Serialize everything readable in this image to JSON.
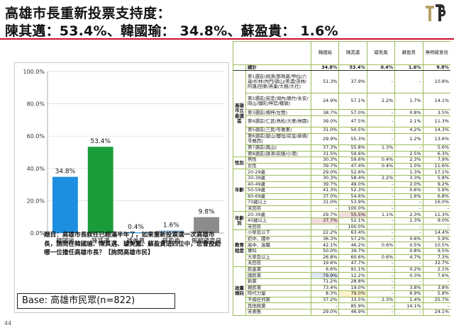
{
  "title": {
    "line1": "高雄市長重新投票支持度：",
    "line2": "陳其邁：53.4%、韓國瑜： 34.8%、蘇盈貴： 1.6%"
  },
  "colors": {
    "accent_red": "#c8102e",
    "bar_blue": "#1e8fe0",
    "bar_green": "#1a9c3a",
    "bar_gray": "#8c8c8c",
    "bar_light_blue": "#9dc3e6",
    "table_border": "#9bbb59"
  },
  "chart_data": {
    "type": "bar",
    "categories": [
      "韓國瑜",
      "陳其邁",
      "璩美鳳",
      "蘇盈貴",
      "無明確意見"
    ],
    "values": [
      34.8,
      53.4,
      0.4,
      1.6,
      9.8
    ],
    "value_labels": [
      "34.8%",
      "53.4%",
      "0.4%",
      "1.6%",
      "9.8%"
    ],
    "bar_colors": [
      "#1e8fe0",
      "#1a9c3a",
      "#1e8fe0",
      "#9dc3e6",
      "#8c8c8c"
    ],
    "ylim": [
      0,
      100
    ],
    "yticks": [
      "0.0%",
      "20.0%",
      "40.0%",
      "60.0%",
      "80.0%",
      "100.0%"
    ],
    "grid": true,
    "title": "",
    "xlabel": "",
    "ylabel": ""
  },
  "question": "題目：高雄市長就任已經滿半年了，如果重新投票選一次高雄市長，請問在韓國瑜、陳其邁、璩美鳳、蘇盈貴這四位中，您會投給哪一位擔任高雄市長？【詢問高雄市民】",
  "base": "Base: 高雄市民眾(n=822)",
  "page_number": "44",
  "table": {
    "headers": [
      "韓國瑜",
      "陳其邁",
      "璩美鳳",
      "蘇盈貴",
      "無明確意見"
    ],
    "total": {
      "label": "總計",
      "values": [
        "34.8%",
        "53.4%",
        "0.4%",
        "1.6%",
        "9.8%"
      ]
    },
    "groups": [
      {
        "name": "高雄市立委選區",
        "rows": [
          {
            "label": "第1選區(桃源/那瑪夏/甲仙/六龜/杉林/內門/旗山/美濃/茂林/阿蓮/田寮/燕巢/大樹/大社)",
            "values": [
              "51.3%",
              "37.9%",
              "-",
              "-",
              "10.8%"
            ],
            "tall": 4
          },
          {
            "label": "第2選區(茄萣/湖內/路竹/永安/岡山/彌陀/梓官/橋頭)",
            "values": [
              "24.9%",
              "57.1%",
              "2.2%",
              "1.7%",
              "14.1%"
            ],
            "tall": 3
          },
          {
            "label": "第3選區(楠梓/左營)",
            "values": [
              "38.7%",
              "57.0%",
              "-",
              "0.8%",
              "3.5%"
            ],
            "tall": 1
          },
          {
            "label": "第4選區(仁武/鳥松/大寮/林園)",
            "values": [
              "39.0%",
              "47.5%",
              "-",
              "2.1%",
              "11.3%"
            ],
            "tall": 2
          },
          {
            "label": "第5選區(三民/苓雅東)",
            "values": [
              "31.0%",
              "50.5%",
              "-",
              "4.2%",
              "14.3%"
            ],
            "tall": 1
          },
          {
            "label": "第6選區(鼓山/鹽埕/前金/新興/苓雅西)",
            "values": [
              "29.9%",
              "55.3%",
              "-",
              "1.2%",
              "13.6%"
            ],
            "tall": 2
          },
          {
            "label": "第7選區(鳳山)",
            "values": [
              "37.3%",
              "55.8%",
              "1.3%",
              "-",
              "5.6%"
            ],
            "tall": 1
          },
          {
            "label": "第8選區(旗津/前鎮/小港)",
            "values": [
              "31.5%",
              "59.6%",
              "-",
              "2.5%",
              "6.3%"
            ],
            "tall": 1
          }
        ]
      },
      {
        "name": "性別",
        "rows": [
          {
            "label": "男性",
            "values": [
              "30.3%",
              "59.6%",
              "0.4%",
              "2.3%",
              "7.9%"
            ],
            "tall": 1
          },
          {
            "label": "女性",
            "values": [
              "39.7%",
              "47.4%",
              "0.4%",
              "1.0%",
              "11.6%"
            ],
            "tall": 1
          }
        ]
      },
      {
        "name": "年齡",
        "rows": [
          {
            "label": "20-29歲",
            "values": [
              "29.0%",
              "52.6%",
              "-",
              "1.3%",
              "17.1%"
            ],
            "tall": 1
          },
          {
            "label": "30-39歲",
            "values": [
              "30.3%",
              "58.4%",
              "2.2%",
              "3.3%",
              "5.8%"
            ],
            "tall": 1
          },
          {
            "label": "40-49歲",
            "values": [
              "39.7%",
              "49.0%",
              "-",
              "2.0%",
              "9.2%"
            ],
            "tall": 1
          },
          {
            "label": "50-59歲",
            "values": [
              "41.3%",
              "52.3%",
              "-",
              "0.6%",
              "5.9%"
            ],
            "tall": 1
          },
          {
            "label": "60-69歲",
            "values": [
              "37.0%",
              "54.6%",
              "-",
              "1.6%",
              "6.8%"
            ],
            "tall": 1
          },
          {
            "label": "70歲以上",
            "values": [
              "31.0%",
              "53.9%",
              "-",
              "-",
              "16.0%"
            ],
            "tall": 1
          },
          {
            "label": "未回答",
            "values": [
              "-",
              "100.0%",
              "-",
              "-",
              "-"
            ],
            "tall": 1
          }
        ]
      },
      {
        "name": "年齡別",
        "rows": [
          {
            "label": "20-39歲",
            "values": [
              "29.7%",
              "55.5%",
              "1.1%",
              "2.3%",
              "11.3%"
            ],
            "tall": 1,
            "hl": [
              null,
              "pink",
              null,
              null,
              null
            ]
          },
          {
            "label": "40歲以上",
            "values": [
              "37.7%",
              "52.1%",
              "-",
              "1.3%",
              "9.0%"
            ],
            "tall": 1,
            "hl": [
              "pink",
              null,
              null,
              null,
              null
            ]
          },
          {
            "label": "未回答",
            "values": [
              "-",
              "100.0%",
              "-",
              "-",
              "-"
            ],
            "tall": 1
          }
        ]
      },
      {
        "name": "教育程度",
        "rows": [
          {
            "label": "小學及以下",
            "values": [
              "22.2%",
              "63.4%",
              "-",
              "-",
              "14.4%"
            ],
            "tall": 1
          },
          {
            "label": "初中、國中",
            "values": [
              "36.3%",
              "57.2%",
              "-",
              "0.6%",
              "5.9%"
            ],
            "tall": 1
          },
          {
            "label": "高中、高職",
            "values": [
              "42.1%",
              "46.2%",
              "0.6%",
              "0.5%",
              "10.5%"
            ],
            "tall": 1
          },
          {
            "label": "專科",
            "values": [
              "50.0%",
              "39.7%",
              "-",
              "0.8%",
              "9.5%"
            ],
            "tall": 1
          },
          {
            "label": "大學及以上",
            "values": [
              "26.8%",
              "60.6%",
              "0.6%",
              "4.7%",
              "7.3%"
            ],
            "tall": 1
          },
          {
            "label": "未回答",
            "values": [
              "19.6%",
              "47.7%",
              "-",
              "-",
              "32.7%"
            ],
            "tall": 1
          }
        ]
      },
      {
        "name": "政黨傾向",
        "rows": [
          {
            "label": "民進黨",
            "values": [
              "6.6%",
              "91.1%",
              "-",
              "0.2%",
              "2.1%"
            ],
            "tall": 1
          },
          {
            "label": "國民黨",
            "values": [
              "79.9%",
              "12.2%",
              "-",
              "0.3%",
              "7.6%"
            ],
            "tall": 1,
            "hl": [
              "blue",
              null,
              null,
              null,
              null
            ]
          },
          {
            "label": "新黨",
            "values": [
              "71.2%",
              "28.8%",
              "-",
              "-",
              "-"
            ],
            "tall": 1
          },
          {
            "label": "親民黨",
            "values": [
              "73.4%",
              "19.0%",
              "-",
              "3.8%",
              "3.8%"
            ],
            "tall": 1
          },
          {
            "label": "時代力量",
            "values": [
              "8.3%",
              "79.0%",
              "-",
              "6.9%",
              "5.8%"
            ],
            "tall": 1,
            "hl": [
              null,
              "yellow",
              null,
              null,
              null
            ]
          },
          {
            "label": "不偏任何黨",
            "values": [
              "37.2%",
              "33.5%",
              "2.3%",
              "1.4%",
              "25.7%"
            ],
            "tall": 1
          },
          {
            "label": "其他政黨",
            "values": [
              "-",
              "85.9%",
              "-",
              "14.1%",
              "-"
            ],
            "tall": 1
          },
          {
            "label": "未表態",
            "values": [
              "29.0%",
              "46.9%",
              "-",
              "-",
              "24.1%"
            ],
            "tall": 1
          }
        ]
      }
    ]
  }
}
